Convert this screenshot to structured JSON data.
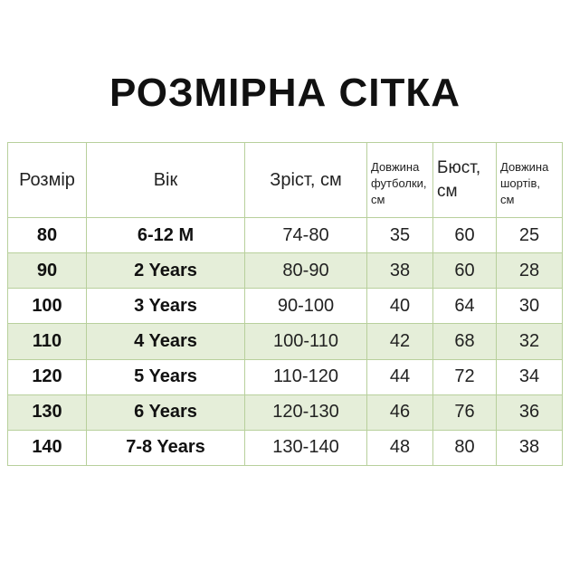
{
  "header": {
    "title": "РОЗМІРНА СІТКА"
  },
  "table": {
    "columns": [
      [
        "Розмір"
      ],
      [
        "Вік"
      ],
      [
        "Зріст, см"
      ],
      [
        "Довжина",
        "футболки,",
        "см"
      ],
      [
        "Бюст,",
        "см"
      ],
      [
        "Довжина",
        "шортів,",
        "см"
      ]
    ],
    "rows": [
      [
        "80",
        "6-12 M",
        "74-80",
        "35",
        "60",
        "25"
      ],
      [
        "90",
        "2 Years",
        "80-90",
        "38",
        "60",
        "28"
      ],
      [
        "100",
        "3 Years",
        "90-100",
        "40",
        "64",
        "30"
      ],
      [
        "110",
        "4 Years",
        "100-110",
        "42",
        "68",
        "32"
      ],
      [
        "120",
        "5 Years",
        "110-120",
        "44",
        "72",
        "34"
      ],
      [
        "130",
        "6 Years",
        "120-130",
        "46",
        "76",
        "36"
      ],
      [
        "140",
        "7-8 Years",
        "130-140",
        "48",
        "80",
        "38"
      ]
    ]
  }
}
